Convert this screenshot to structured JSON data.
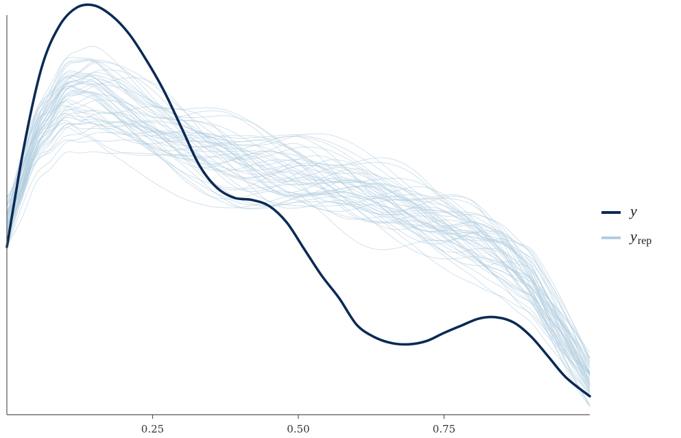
{
  "chart_data": {
    "type": "line",
    "title": "",
    "xlabel": "",
    "ylabel": "",
    "xlim": [
      0,
      1
    ],
    "ylim": [
      0,
      1
    ],
    "x_ticks": [
      {
        "value": 0.25,
        "label": "0.25"
      },
      {
        "value": 0.5,
        "label": "0.50"
      },
      {
        "value": 0.75,
        "label": "0.75"
      }
    ],
    "y_axis_ticks_shown": false,
    "grid": false,
    "legend": {
      "placement": "right",
      "entries": [
        {
          "key": "y",
          "label": "y",
          "sub": "",
          "color": "#0b2a55"
        },
        {
          "key": "yrep",
          "label": "y",
          "sub": "rep",
          "color": "#b3cde0"
        }
      ]
    },
    "colors": {
      "y": "#0b2a55",
      "yrep": "#b3cde0"
    },
    "series": [
      {
        "name": "y",
        "x": [
          0,
          0.03,
          0.06,
          0.09,
          0.12,
          0.15,
          0.18,
          0.21,
          0.24,
          0.27,
          0.3,
          0.33,
          0.36,
          0.39,
          0.42,
          0.45,
          0.48,
          0.51,
          0.54,
          0.57,
          0.6,
          0.63,
          0.66,
          0.69,
          0.72,
          0.75,
          0.78,
          0.81,
          0.84,
          0.87,
          0.9,
          0.93,
          0.96,
          1.0
        ],
        "y": [
          0.41,
          0.66,
          0.85,
          0.95,
          0.995,
          1.0,
          0.975,
          0.93,
          0.865,
          0.79,
          0.7,
          0.61,
          0.555,
          0.53,
          0.525,
          0.51,
          0.47,
          0.405,
          0.34,
          0.285,
          0.22,
          0.19,
          0.175,
          0.172,
          0.18,
          0.2,
          0.218,
          0.235,
          0.238,
          0.225,
          0.19,
          0.14,
          0.09,
          0.045
        ]
      }
    ],
    "yrep_summary": {
      "count": 50,
      "x": [
        0,
        0.05,
        0.1,
        0.15,
        0.2,
        0.25,
        0.3,
        0.35,
        0.4,
        0.45,
        0.5,
        0.55,
        0.6,
        0.65,
        0.7,
        0.75,
        0.8,
        0.85,
        0.9,
        0.95,
        1.0
      ],
      "mean": [
        0.47,
        0.68,
        0.77,
        0.77,
        0.74,
        0.705,
        0.67,
        0.64,
        0.615,
        0.6,
        0.59,
        0.57,
        0.545,
        0.52,
        0.495,
        0.465,
        0.435,
        0.39,
        0.32,
        0.2,
        0.08
      ]
    }
  }
}
